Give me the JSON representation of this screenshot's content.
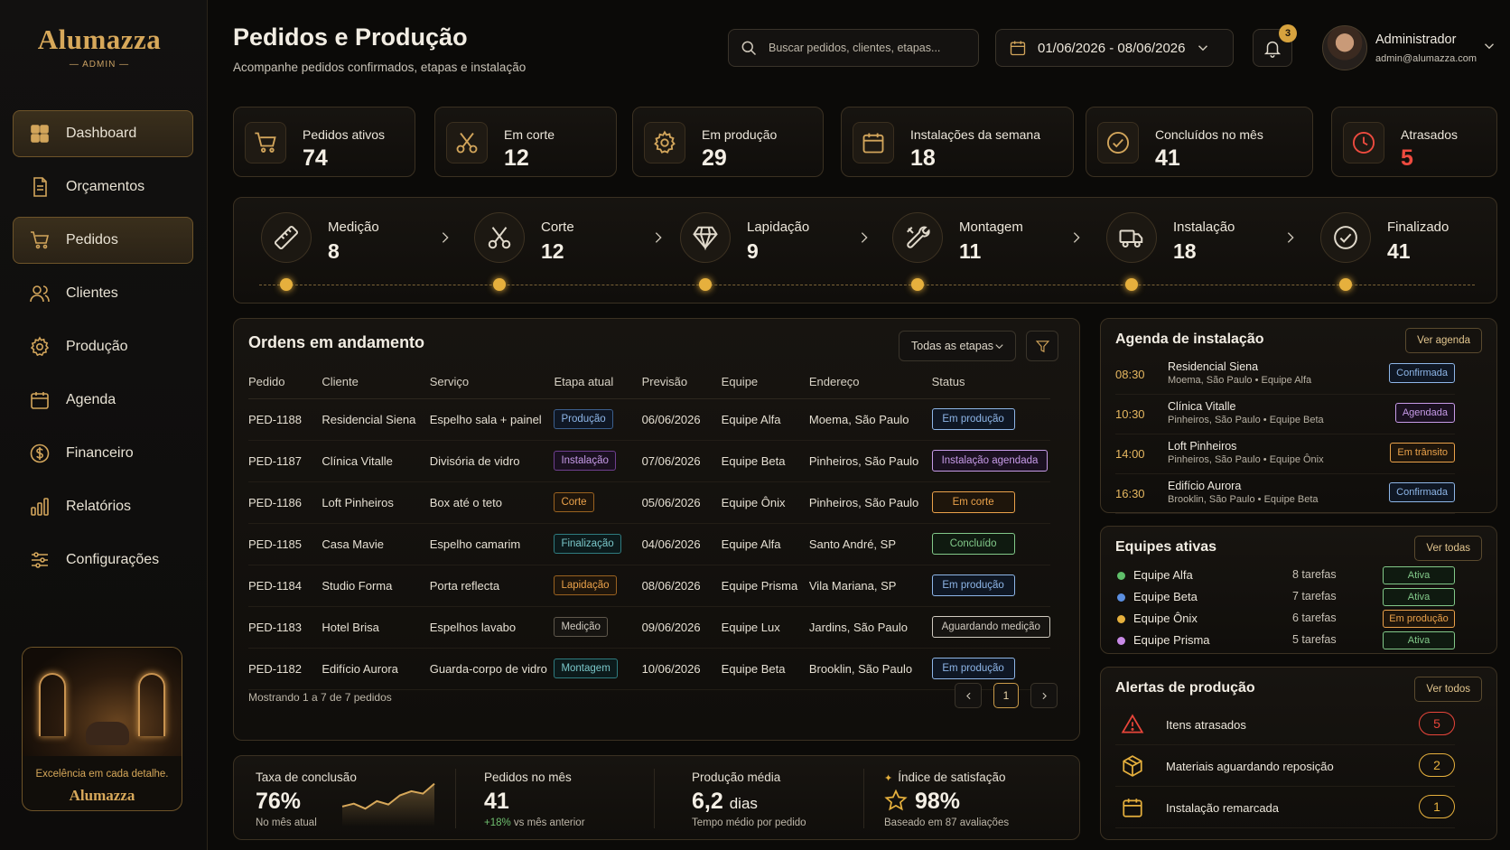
{
  "brand": {
    "name": "Alumazza",
    "sub": "— ADMIN —"
  },
  "nav": [
    {
      "label": "Dashboard",
      "icon": "grid-icon",
      "active": true
    },
    {
      "label": "Orçamentos",
      "icon": "document-icon",
      "active": false
    },
    {
      "label": "Pedidos",
      "icon": "cart-icon",
      "active": true
    },
    {
      "label": "Clientes",
      "icon": "users-icon",
      "active": false
    },
    {
      "label": "Produção",
      "icon": "gear-icon",
      "active": false
    },
    {
      "label": "Agenda",
      "icon": "calendar-icon",
      "active": false
    },
    {
      "label": "Financeiro",
      "icon": "dollar-icon",
      "active": false
    },
    {
      "label": "Relatórios",
      "icon": "bar-chart-icon",
      "active": false
    },
    {
      "label": "Configurações",
      "icon": "sliders-icon",
      "active": false
    }
  ],
  "promo": {
    "tagline": "Excelência em cada detalhe.",
    "brand": "Alumazza"
  },
  "header": {
    "title": "Pedidos e Produção",
    "subtitle": "Acompanhe pedidos confirmados, etapas e instalação",
    "search_placeholder": "Buscar pedidos, clientes, etapas...",
    "date_range": "01/06/2026 - 08/06/2026",
    "notifications": "3",
    "user_name": "Administrador",
    "user_email": "admin@alumazza.com"
  },
  "stats": [
    {
      "label": "Pedidos ativos",
      "value": "74",
      "icon": "cart-icon"
    },
    {
      "label": "Em corte",
      "value": "12",
      "icon": "scissors-icon"
    },
    {
      "label": "Em produção",
      "value": "29",
      "icon": "gear-icon"
    },
    {
      "label": "Instalações da semana",
      "value": "18",
      "icon": "calendar-icon"
    },
    {
      "label": "Concluídos no mês",
      "value": "41",
      "icon": "check-circle-icon"
    },
    {
      "label": "Atrasados",
      "value": "5",
      "icon": "clock-icon"
    }
  ],
  "pipeline": [
    {
      "label": "Medição",
      "value": "8",
      "icon": "ruler-icon"
    },
    {
      "label": "Corte",
      "value": "12",
      "icon": "scissors-icon"
    },
    {
      "label": "Lapidação",
      "value": "9",
      "icon": "diamond-icon"
    },
    {
      "label": "Montagem",
      "value": "11",
      "icon": "tools-icon"
    },
    {
      "label": "Instalação",
      "value": "18",
      "icon": "truck-icon"
    },
    {
      "label": "Finalizado",
      "value": "41",
      "icon": "check-circle-icon"
    }
  ],
  "orders": {
    "title": "Ordens em andamento",
    "filter_label": "Todas as etapas",
    "columns": [
      "Pedido",
      "Cliente",
      "Serviço",
      "Etapa atual",
      "Previsão",
      "Equipe",
      "Endereço",
      "Status"
    ],
    "rows": [
      {
        "id": "PED-1188",
        "cliente": "Residencial Siena",
        "servico": "Espelho sala + painel",
        "etapa": "Produção",
        "etapa_color": "blue",
        "previsao": "06/06/2026",
        "equipe": "Equipe Alfa",
        "endereco": "Moema, São Paulo",
        "status": "Em produção",
        "status_color": "blue"
      },
      {
        "id": "PED-1187",
        "cliente": "Clínica Vitalle",
        "servico": "Divisória de vidro",
        "etapa": "Instalação",
        "etapa_color": "purple",
        "previsao": "07/06/2026",
        "equipe": "Equipe Beta",
        "endereco": "Pinheiros, São Paulo",
        "status": "Instalação agendada",
        "status_color": "purple"
      },
      {
        "id": "PED-1186",
        "cliente": "Loft Pinheiros",
        "servico": "Box até o teto",
        "etapa": "Corte",
        "etapa_color": "orange",
        "previsao": "05/06/2026",
        "equipe": "Equipe Ônix",
        "endereco": "Pinheiros, São Paulo",
        "status": "Em corte",
        "status_color": "orange"
      },
      {
        "id": "PED-1185",
        "cliente": "Casa Mavie",
        "servico": "Espelho camarim",
        "etapa": "Finalização",
        "etapa_color": "teal",
        "previsao": "04/06/2026",
        "equipe": "Equipe Alfa",
        "endereco": "Santo André, SP",
        "status": "Concluído",
        "status_color": "green"
      },
      {
        "id": "PED-1184",
        "cliente": "Studio Forma",
        "servico": "Porta reflecta",
        "etapa": "Lapidação",
        "etapa_color": "orange",
        "previsao": "08/06/2026",
        "equipe": "Equipe Prisma",
        "endereco": "Vila Mariana, SP",
        "status": "Em produção",
        "status_color": "blue"
      },
      {
        "id": "PED-1183",
        "cliente": "Hotel Brisa",
        "servico": "Espelhos lavabo",
        "etapa": "Medição",
        "etapa_color": "gray",
        "previsao": "09/06/2026",
        "equipe": "Equipe Lux",
        "endereco": "Jardins, São Paulo",
        "status": "Aguardando medição",
        "status_color": "gray"
      },
      {
        "id": "PED-1182",
        "cliente": "Edifício Aurora",
        "servico": "Guarda-corpo de vidro",
        "etapa": "Montagem",
        "etapa_color": "teal",
        "previsao": "10/06/2026",
        "equipe": "Equipe Beta",
        "endereco": "Brooklin, São Paulo",
        "status": "Em produção",
        "status_color": "blue"
      }
    ],
    "footer": "Mostrando 1 a 7 de 7 pedidos",
    "page": "1"
  },
  "metrics": [
    {
      "label": "Taxa de conclusão",
      "value": "76%",
      "note": "No mês atual",
      "trend": [
        0.35,
        0.42,
        0.3,
        0.48,
        0.4,
        0.62,
        0.72,
        0.66,
        0.9
      ]
    },
    {
      "label": "Pedidos no mês",
      "value": "41",
      "note_up": "+18%",
      "note": " vs mês anterior"
    },
    {
      "label": "Produção média",
      "value": "6,2",
      "unit": "dias",
      "note": "Tempo médio por pedido"
    },
    {
      "label": "Índice de satisfação",
      "value": "98%",
      "note": "Baseado em 87 avaliações"
    }
  ],
  "agenda": {
    "title": "Agenda de instalação",
    "button": "Ver agenda",
    "items": [
      {
        "time": "08:30",
        "name": "Residencial Siena",
        "sub": "Moema, São Paulo  •  Equipe Alfa",
        "status": "Confirmada",
        "color": "blue"
      },
      {
        "time": "10:30",
        "name": "Clínica Vitalle",
        "sub": "Pinheiros, São Paulo  •  Equipe Beta",
        "status": "Agendada",
        "color": "purple"
      },
      {
        "time": "14:00",
        "name": "Loft Pinheiros",
        "sub": "Pinheiros, São Paulo  •  Equipe Ônix",
        "status": "Em trânsito",
        "color": "orange"
      },
      {
        "time": "16:30",
        "name": "Edifício Aurora",
        "sub": "Brooklin, São Paulo  •  Equipe Beta",
        "status": "Confirmada",
        "color": "blue"
      }
    ]
  },
  "teams": {
    "title": "Equipes ativas",
    "button": "Ver todas",
    "items": [
      {
        "name": "Equipe Alfa",
        "tasks": "8 tarefas",
        "status": "Ativa",
        "dot": "#5fbf6a",
        "color": "green"
      },
      {
        "name": "Equipe Beta",
        "tasks": "7 tarefas",
        "status": "Ativa",
        "dot": "#5b8fe0",
        "color": "green"
      },
      {
        "name": "Equipe Ônix",
        "tasks": "6 tarefas",
        "status": "Em produção",
        "dot": "#e6b03d",
        "color": "orange"
      },
      {
        "name": "Equipe Prisma",
        "tasks": "5 tarefas",
        "status": "Ativa",
        "dot": "#c88ae6",
        "color": "green"
      }
    ]
  },
  "alerts": {
    "title": "Alertas de produção",
    "button": "Ver todos",
    "items": [
      {
        "label": "Itens atrasados",
        "count": "5",
        "icon": "warning-icon",
        "color": "#e8453a"
      },
      {
        "label": "Materiais aguardando reposição",
        "count": "2",
        "icon": "box-icon",
        "color": "#e6b03d"
      },
      {
        "label": "Instalação remarcada",
        "count": "1",
        "icon": "calendar-icon",
        "color": "#e6b03d"
      }
    ]
  }
}
